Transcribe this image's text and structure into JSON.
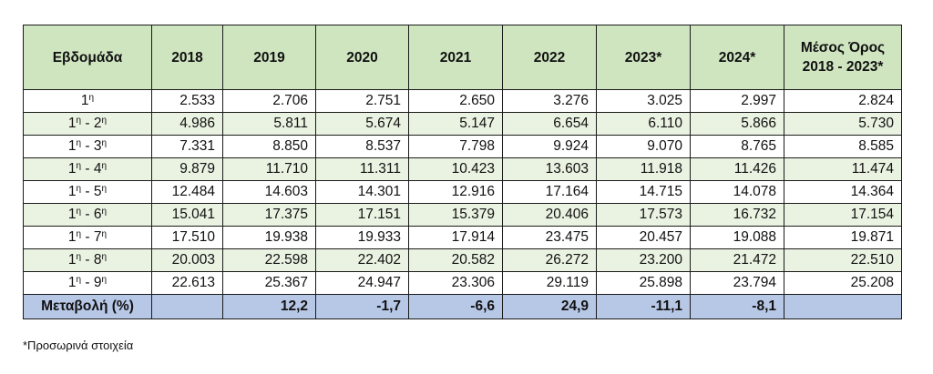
{
  "table": {
    "headers": [
      "Εβδομάδα",
      "2018",
      "2019",
      "2020",
      "2021",
      "2022",
      "2023*",
      "2024*",
      "Μέσος Όρος",
      "2018 - 2023*"
    ],
    "rows": [
      {
        "week": {
          "a": "1",
          "sup_a": "η",
          "sep": "",
          "b": "",
          "sup_b": ""
        },
        "values": [
          "2.533",
          "2.706",
          "2.751",
          "2.650",
          "3.276",
          "3.025",
          "2.997",
          "2.824"
        ]
      },
      {
        "week": {
          "a": "1",
          "sup_a": "η",
          "sep": " - ",
          "b": "2",
          "sup_b": "η"
        },
        "values": [
          "4.986",
          "5.811",
          "5.674",
          "5.147",
          "6.654",
          "6.110",
          "5.866",
          "5.730"
        ]
      },
      {
        "week": {
          "a": "1",
          "sup_a": "η",
          "sep": " - ",
          "b": "3",
          "sup_b": "η"
        },
        "values": [
          "7.331",
          "8.850",
          "8.537",
          "7.798",
          "9.924",
          "9.070",
          "8.765",
          "8.585"
        ]
      },
      {
        "week": {
          "a": "1",
          "sup_a": "η",
          "sep": " - ",
          "b": "4",
          "sup_b": "η"
        },
        "values": [
          "9.879",
          "11.710",
          "11.311",
          "10.423",
          "13.603",
          "11.918",
          "11.426",
          "11.474"
        ]
      },
      {
        "week": {
          "a": "1",
          "sup_a": "η",
          "sep": " - ",
          "b": "5",
          "sup_b": "η"
        },
        "values": [
          "12.484",
          "14.603",
          "14.301",
          "12.916",
          "17.164",
          "14.715",
          "14.078",
          "14.364"
        ]
      },
      {
        "week": {
          "a": "1",
          "sup_a": "η",
          "sep": " - ",
          "b": "6",
          "sup_b": "η"
        },
        "values": [
          "15.041",
          "17.375",
          "17.151",
          "15.379",
          "20.406",
          "17.573",
          "16.732",
          "17.154"
        ]
      },
      {
        "week": {
          "a": "1",
          "sup_a": "η",
          "sep": " - ",
          "b": "7",
          "sup_b": "η"
        },
        "values": [
          "17.510",
          "19.938",
          "19.933",
          "17.914",
          "23.475",
          "20.457",
          "19.088",
          "19.871"
        ]
      },
      {
        "week": {
          "a": "1",
          "sup_a": "η",
          "sep": " - ",
          "b": "8",
          "sup_b": "η"
        },
        "values": [
          "20.003",
          "22.598",
          "22.402",
          "20.582",
          "26.272",
          "23.200",
          "21.472",
          "22.510"
        ]
      },
      {
        "week": {
          "a": "1",
          "sup_a": "η",
          "sep": " - ",
          "b": "9",
          "sup_b": "η"
        },
        "values": [
          "22.613",
          "25.367",
          "24.947",
          "23.306",
          "29.119",
          "25.898",
          "23.794",
          "25.208"
        ]
      }
    ],
    "footer": {
      "label": "Μεταβολή (%)",
      "values": [
        "",
        "12,2",
        "-1,7",
        "-6,6",
        "24,9",
        "-11,1",
        "-8,1",
        ""
      ]
    }
  },
  "footnote": "*Προσωρινά στοιχεία",
  "colors": {
    "header_bg": "#cfe5c0",
    "stripe_bg": "#eaf3e2",
    "footer_bg": "#b7c7e6"
  }
}
